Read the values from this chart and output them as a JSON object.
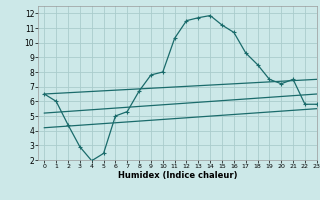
{
  "xlabel": "Humidex (Indice chaleur)",
  "bg_color": "#cce8e8",
  "grid_color": "#aacccc",
  "line_color": "#1a6b6b",
  "xlim": [
    -0.5,
    23
  ],
  "ylim": [
    2,
    12.5
  ],
  "xticks": [
    0,
    1,
    2,
    3,
    4,
    5,
    6,
    7,
    8,
    9,
    10,
    11,
    12,
    13,
    14,
    15,
    16,
    17,
    18,
    19,
    20,
    21,
    22,
    23
  ],
  "yticks": [
    2,
    3,
    4,
    5,
    6,
    7,
    8,
    9,
    10,
    11,
    12
  ],
  "line1_x": [
    0,
    1,
    2,
    3,
    4,
    5,
    6,
    7,
    8,
    9,
    10,
    11,
    12,
    13,
    14,
    15,
    16,
    17,
    18,
    19,
    20,
    21,
    22,
    23
  ],
  "line1_y": [
    6.5,
    6.0,
    4.4,
    2.9,
    1.95,
    2.45,
    5.0,
    5.3,
    6.7,
    7.8,
    8.0,
    10.3,
    11.5,
    11.7,
    11.85,
    11.2,
    10.7,
    9.3,
    8.5,
    7.5,
    7.2,
    7.5,
    5.8,
    5.8
  ],
  "line2_x": [
    0,
    23
  ],
  "line2_y": [
    6.5,
    7.5
  ],
  "line3_x": [
    0,
    23
  ],
  "line3_y": [
    5.2,
    6.5
  ],
  "line4_x": [
    0,
    23
  ],
  "line4_y": [
    4.2,
    5.5
  ]
}
